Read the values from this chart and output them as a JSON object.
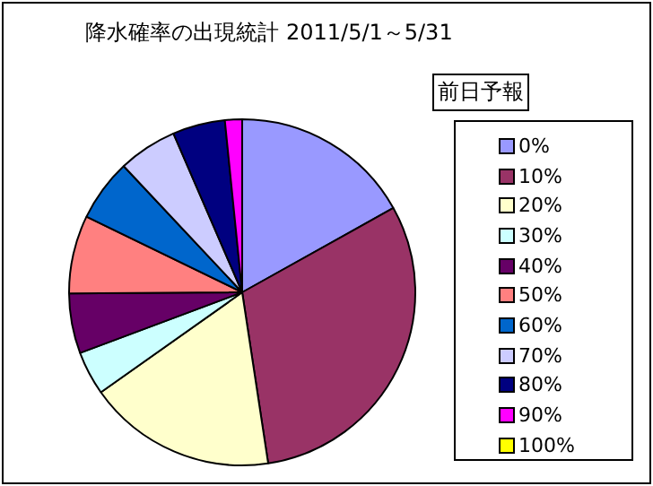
{
  "chart_data": {
    "type": "pie",
    "title": "降水確率の出現統計 2011/5/1～5/31",
    "legend_title": "前日予報",
    "legend": "right",
    "categories": [
      "0%",
      "10%",
      "20%",
      "30%",
      "40%",
      "50%",
      "60%",
      "70%",
      "80%",
      "90%",
      "100%"
    ],
    "values": [
      16.9,
      30.7,
      17.6,
      4.1,
      5.6,
      7.3,
      5.8,
      5.5,
      4.9,
      1.6,
      0
    ],
    "colors": [
      "#9999ff",
      "#993366",
      "#ffffcc",
      "#ccffff",
      "#660066",
      "#ff8080",
      "#0066cc",
      "#ccccff",
      "#000080",
      "#ff00ff",
      "#ffff00"
    ]
  }
}
